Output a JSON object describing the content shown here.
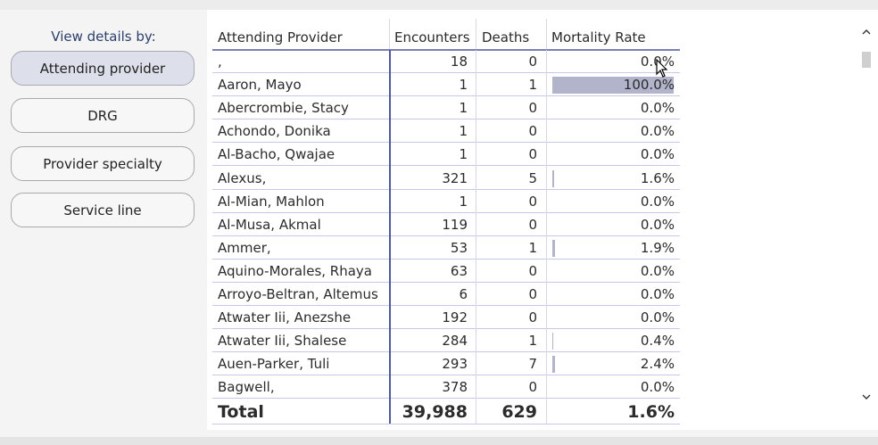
{
  "sidebar": {
    "title": "View details by:",
    "buttons": [
      {
        "label": "Attending provider",
        "active": true
      },
      {
        "label": "DRG",
        "active": false
      },
      {
        "label": "Provider specialty",
        "active": false
      },
      {
        "label": "Service line",
        "active": false
      }
    ]
  },
  "table": {
    "headers": {
      "provider": "Attending Provider",
      "encounters": "Encounters",
      "deaths": "Deaths",
      "rate": "Mortality Rate"
    },
    "rows": [
      {
        "provider": ",",
        "encounters": "18",
        "deaths": "0",
        "rate": "0.0%",
        "rate_value": 0.0
      },
      {
        "provider": "Aaron, Mayo",
        "encounters": "1",
        "deaths": "1",
        "rate": "100.0%",
        "rate_value": 100.0
      },
      {
        "provider": "Abercrombie, Stacy",
        "encounters": "1",
        "deaths": "0",
        "rate": "0.0%",
        "rate_value": 0.0
      },
      {
        "provider": "Achondo, Donika",
        "encounters": "1",
        "deaths": "0",
        "rate": "0.0%",
        "rate_value": 0.0
      },
      {
        "provider": "Al-Bacho, Qwajae",
        "encounters": "1",
        "deaths": "0",
        "rate": "0.0%",
        "rate_value": 0.0
      },
      {
        "provider": "Alexus,",
        "encounters": "321",
        "deaths": "5",
        "rate": "1.6%",
        "rate_value": 1.6
      },
      {
        "provider": "Al-Mian, Mahlon",
        "encounters": "1",
        "deaths": "0",
        "rate": "0.0%",
        "rate_value": 0.0
      },
      {
        "provider": "Al-Musa, Akmal",
        "encounters": "119",
        "deaths": "0",
        "rate": "0.0%",
        "rate_value": 0.0
      },
      {
        "provider": "Ammer,",
        "encounters": "53",
        "deaths": "1",
        "rate": "1.9%",
        "rate_value": 1.9
      },
      {
        "provider": "Aquino-Morales, Rhaya",
        "encounters": "63",
        "deaths": "0",
        "rate": "0.0%",
        "rate_value": 0.0
      },
      {
        "provider": "Arroyo-Beltran, Altemus",
        "encounters": "6",
        "deaths": "0",
        "rate": "0.0%",
        "rate_value": 0.0
      },
      {
        "provider": "Atwater Iii, Anezshe",
        "encounters": "192",
        "deaths": "0",
        "rate": "0.0%",
        "rate_value": 0.0
      },
      {
        "provider": "Atwater Iii, Shalese",
        "encounters": "284",
        "deaths": "1",
        "rate": "0.4%",
        "rate_value": 0.4
      },
      {
        "provider": "Auen-Parker, Tuli",
        "encounters": "293",
        "deaths": "7",
        "rate": "2.4%",
        "rate_value": 2.4
      },
      {
        "provider": "Bagwell,",
        "encounters": "378",
        "deaths": "0",
        "rate": "0.0%",
        "rate_value": 0.0
      }
    ],
    "total": {
      "label": "Total",
      "encounters": "39,988",
      "deaths": "629",
      "rate": "1.6%"
    },
    "bar_color": "#b2b4cc",
    "accent_color": "#4e5a9c"
  },
  "scrollbar": {
    "up_icon": "chevron-up-icon",
    "down_icon": "chevron-down-icon"
  }
}
